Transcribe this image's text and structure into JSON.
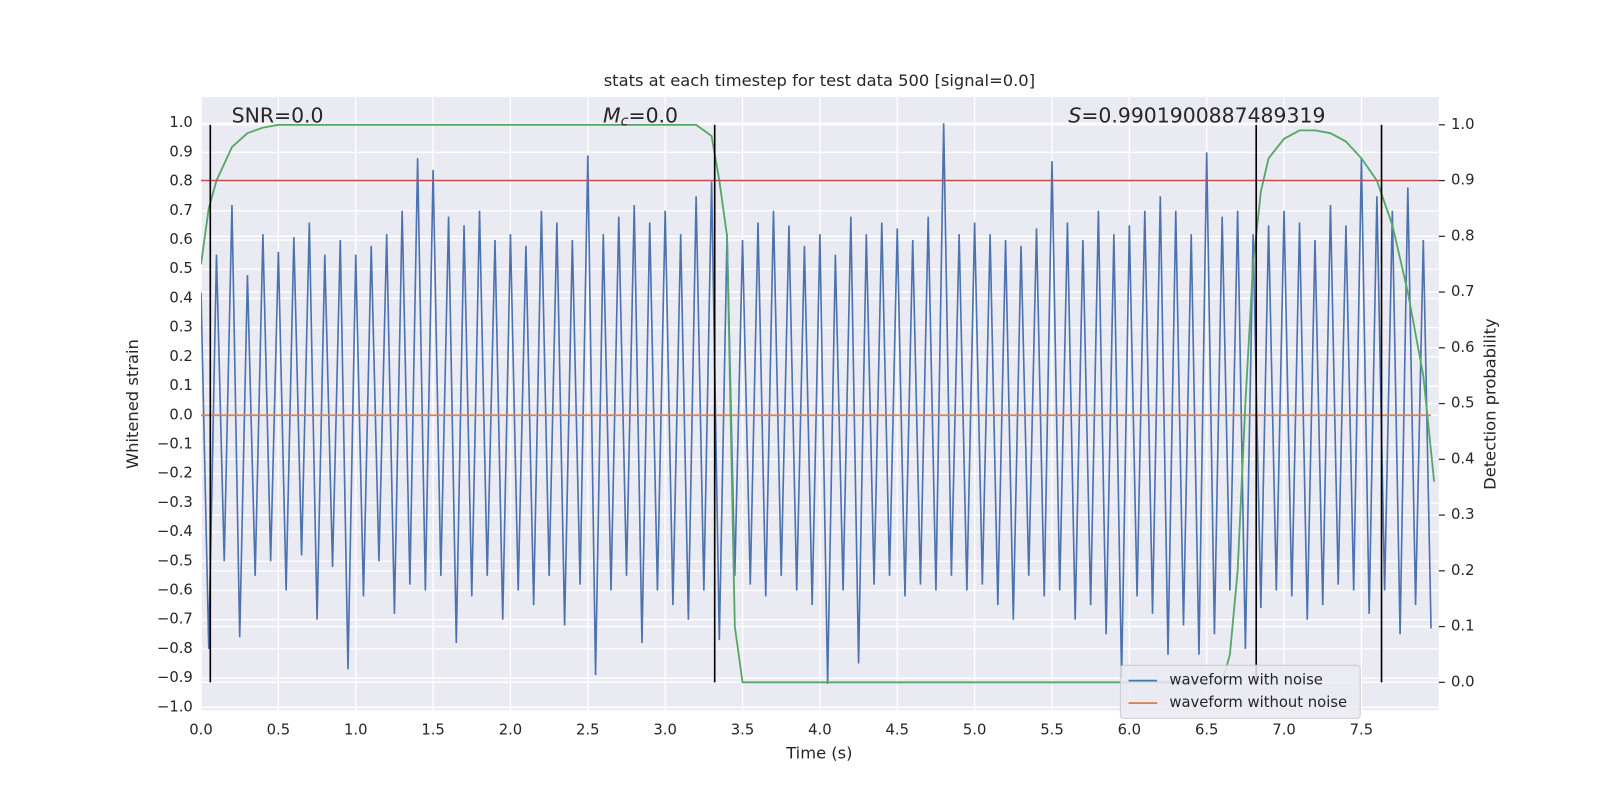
{
  "chart_data": {
    "type": "line",
    "title": "stats at each timestep for test data 500 [signal=0.0]",
    "xlabel": "Time (s)",
    "ylabel": "Whitened strain",
    "y2label": "Detection probability",
    "xlim": [
      0,
      8
    ],
    "ylim": [
      -1.01,
      1.09
    ],
    "y2lim": [
      -0.05,
      1.05
    ],
    "xticks": [
      {
        "value": 0,
        "label": "0.0"
      },
      {
        "value": 0.5,
        "label": "0.5"
      },
      {
        "value": 1,
        "label": "1.0"
      },
      {
        "value": 1.5,
        "label": "1.5"
      },
      {
        "value": 2,
        "label": "2.0"
      },
      {
        "value": 2.5,
        "label": "2.5"
      },
      {
        "value": 3,
        "label": "3.0"
      },
      {
        "value": 3.5,
        "label": "3.5"
      },
      {
        "value": 4,
        "label": "4.0"
      },
      {
        "value": 4.5,
        "label": "4.5"
      },
      {
        "value": 5,
        "label": "5.0"
      },
      {
        "value": 5.5,
        "label": "5.5"
      },
      {
        "value": 6,
        "label": "6.0"
      },
      {
        "value": 6.5,
        "label": "6.5"
      },
      {
        "value": 7,
        "label": "7.0"
      },
      {
        "value": 7.5,
        "label": "7.5"
      }
    ],
    "yticks": [
      {
        "value": -1,
        "label": "−1.0"
      },
      {
        "value": -0.9,
        "label": "−0.9"
      },
      {
        "value": -0.8,
        "label": "−0.8"
      },
      {
        "value": -0.7,
        "label": "−0.7"
      },
      {
        "value": -0.6,
        "label": "−0.6"
      },
      {
        "value": -0.5,
        "label": "−0.5"
      },
      {
        "value": -0.4,
        "label": "−0.4"
      },
      {
        "value": -0.3,
        "label": "−0.3"
      },
      {
        "value": -0.2,
        "label": "−0.2"
      },
      {
        "value": -0.1,
        "label": "−0.1"
      },
      {
        "value": 0,
        "label": "0.0"
      },
      {
        "value": 0.1,
        "label": "0.1"
      },
      {
        "value": 0.2,
        "label": "0.2"
      },
      {
        "value": 0.3,
        "label": "0.3"
      },
      {
        "value": 0.4,
        "label": "0.4"
      },
      {
        "value": 0.5,
        "label": "0.5"
      },
      {
        "value": 0.6,
        "label": "0.6"
      },
      {
        "value": 0.7,
        "label": "0.7"
      },
      {
        "value": 0.8,
        "label": "0.8"
      },
      {
        "value": 0.9,
        "label": "0.9"
      },
      {
        "value": 1,
        "label": "1.0"
      }
    ],
    "y2ticks": [
      {
        "value": 0,
        "label": "0.0"
      },
      {
        "value": 0.1,
        "label": "0.1"
      },
      {
        "value": 0.2,
        "label": "0.2"
      },
      {
        "value": 0.3,
        "label": "0.3"
      },
      {
        "value": 0.4,
        "label": "0.4"
      },
      {
        "value": 0.5,
        "label": "0.5"
      },
      {
        "value": 0.6,
        "label": "0.6"
      },
      {
        "value": 0.7,
        "label": "0.7"
      },
      {
        "value": 0.8,
        "label": "0.8"
      },
      {
        "value": 0.9,
        "label": "0.9"
      },
      {
        "value": 1,
        "label": "1.0"
      }
    ],
    "grid": true,
    "legend": "lower right",
    "annotations": [
      {
        "text": "SNR=0.0"
      },
      {
        "symbol": "M",
        "subscript": "c",
        "text": "=0.0"
      },
      {
        "symbol": "S",
        "text": "=0.9901900887489319"
      }
    ],
    "threshold": {
      "value": 0.9,
      "axis": "y2",
      "color": "#c44e52"
    },
    "vlines": {
      "x": [
        0.06,
        3.32,
        6.82,
        7.63
      ],
      "color": "#000000"
    },
    "series": [
      {
        "name": "waveform with noise",
        "color": "#4c72b0",
        "axis": "y",
        "x": [
          0,
          0.05,
          0.1,
          0.15,
          0.2,
          0.25,
          0.3,
          0.35,
          0.4,
          0.45,
          0.5,
          0.55,
          0.6,
          0.65,
          0.7,
          0.75,
          0.8,
          0.85,
          0.9,
          0.95,
          1,
          1.05,
          1.1,
          1.15,
          1.2,
          1.25,
          1.3,
          1.35,
          1.4,
          1.45,
          1.5,
          1.55,
          1.6,
          1.65,
          1.7,
          1.75,
          1.8,
          1.85,
          1.9,
          1.95,
          2,
          2.05,
          2.1,
          2.15,
          2.2,
          2.25,
          2.3,
          2.35,
          2.4,
          2.45,
          2.5,
          2.55,
          2.6,
          2.65,
          2.7,
          2.75,
          2.8,
          2.85,
          2.9,
          2.95,
          3,
          3.05,
          3.1,
          3.15,
          3.2,
          3.25,
          3.3,
          3.35,
          3.4,
          3.45,
          3.5,
          3.55,
          3.6,
          3.65,
          3.7,
          3.75,
          3.8,
          3.85,
          3.9,
          3.95,
          4,
          4.05,
          4.1,
          4.15,
          4.2,
          4.25,
          4.3,
          4.35,
          4.4,
          4.45,
          4.5,
          4.55,
          4.6,
          4.65,
          4.7,
          4.75,
          4.8,
          4.85,
          4.9,
          4.95,
          5,
          5.05,
          5.1,
          5.15,
          5.2,
          5.25,
          5.3,
          5.35,
          5.4,
          5.45,
          5.5,
          5.55,
          5.6,
          5.65,
          5.7,
          5.75,
          5.8,
          5.85,
          5.9,
          5.95,
          6,
          6.05,
          6.1,
          6.15,
          6.2,
          6.25,
          6.3,
          6.35,
          6.4,
          6.45,
          6.5,
          6.55,
          6.6,
          6.65,
          6.7,
          6.75,
          6.8,
          6.85,
          6.9,
          6.95,
          7,
          7.05,
          7.1,
          7.15,
          7.2,
          7.25,
          7.3,
          7.35,
          7.4,
          7.45,
          7.5,
          7.55,
          7.6,
          7.65,
          7.7,
          7.75,
          7.8,
          7.85,
          7.9,
          7.95
        ],
        "values": [
          0.42,
          -0.8,
          0.55,
          -0.5,
          0.72,
          -0.76,
          0.48,
          -0.55,
          0.62,
          -0.5,
          0.56,
          -0.6,
          0.61,
          -0.48,
          0.66,
          -0.7,
          0.55,
          -0.52,
          0.6,
          -0.87,
          0.55,
          -0.62,
          0.58,
          -0.5,
          0.62,
          -0.68,
          0.7,
          -0.58,
          0.88,
          -0.6,
          0.84,
          -0.55,
          0.68,
          -0.78,
          0.65,
          -0.62,
          0.7,
          -0.55,
          0.6,
          -0.7,
          0.62,
          -0.6,
          0.58,
          -0.65,
          0.7,
          -0.55,
          0.66,
          -0.72,
          0.6,
          -0.58,
          0.89,
          -0.89,
          0.62,
          -0.6,
          0.68,
          -0.55,
          0.72,
          -0.78,
          0.66,
          -0.6,
          0.7,
          -0.65,
          0.62,
          -0.7,
          0.75,
          -0.6,
          0.8,
          -0.77,
          0.62,
          -0.55,
          0.6,
          -0.58,
          0.66,
          -0.62,
          0.7,
          -0.55,
          0.65,
          -0.6,
          0.58,
          -0.65,
          0.62,
          -0.92,
          0.55,
          -0.6,
          0.68,
          -0.85,
          0.62,
          -0.58,
          0.66,
          -0.55,
          0.64,
          -0.62,
          0.6,
          -0.58,
          0.68,
          -0.6,
          1.0,
          -0.55,
          0.62,
          -0.6,
          0.66,
          -0.58,
          0.62,
          -0.65,
          0.6,
          -0.7,
          0.58,
          -0.55,
          0.64,
          -0.62,
          0.87,
          -0.6,
          0.66,
          -0.7,
          0.6,
          -0.65,
          0.7,
          -0.75,
          0.62,
          -0.9,
          0.65,
          -0.62,
          0.7,
          -0.68,
          0.75,
          -0.82,
          0.7,
          -0.72,
          0.62,
          -0.82,
          0.9,
          -0.75,
          0.68,
          -0.6,
          0.7,
          -0.8,
          0.62,
          -0.66,
          0.65,
          -0.6,
          0.7,
          -0.62,
          0.66,
          -0.7,
          0.6,
          -0.65,
          0.72,
          -0.58,
          0.65,
          -0.6,
          0.88,
          -0.68,
          0.75,
          -0.6,
          0.7,
          -0.75,
          0.78,
          -0.65,
          0.6,
          -0.73
        ]
      },
      {
        "name": "waveform without noise",
        "color": "#dd8452",
        "axis": "y",
        "x": [
          0,
          7.95
        ],
        "values": [
          0,
          0
        ]
      },
      {
        "color": "#55a868",
        "axis": "y2",
        "x": [
          0,
          0.05,
          0.1,
          0.2,
          0.3,
          0.4,
          0.5,
          1,
          2,
          3,
          3.2,
          3.3,
          3.35,
          3.4,
          3.45,
          3.5,
          3.6,
          4,
          5,
          6,
          6.6,
          6.65,
          6.7,
          6.75,
          6.8,
          6.85,
          6.9,
          7,
          7.1,
          7.2,
          7.3,
          7.4,
          7.5,
          7.6,
          7.7,
          7.8,
          7.9,
          7.97
        ],
        "values": [
          0.75,
          0.85,
          0.9,
          0.96,
          0.985,
          0.995,
          1,
          1,
          1,
          1,
          1,
          0.98,
          0.9,
          0.8,
          0.1,
          0.0,
          0,
          0,
          0,
          0,
          0,
          0.05,
          0.2,
          0.5,
          0.75,
          0.88,
          0.94,
          0.975,
          0.99,
          0.99,
          0.985,
          0.97,
          0.94,
          0.9,
          0.82,
          0.7,
          0.55,
          0.36
        ]
      }
    ]
  }
}
